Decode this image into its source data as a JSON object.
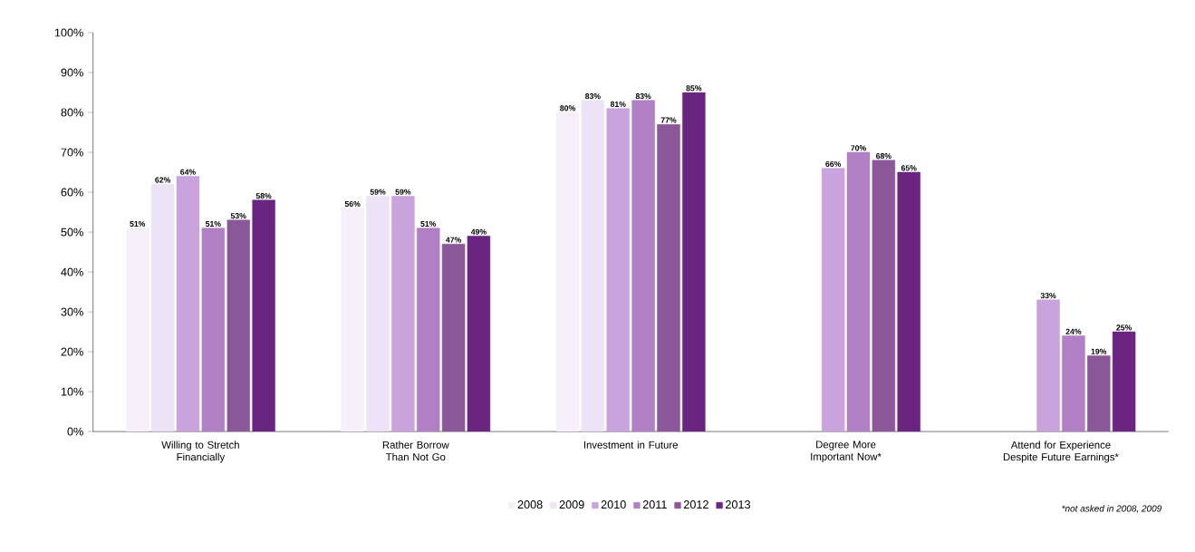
{
  "chart_data": {
    "type": "bar",
    "categories": [
      "Willing to Stretch Financially",
      "Rather Borrow Than Not Go",
      "Investment in Future",
      "Degree More Important Now*",
      "Attend for Experience Despite Future Earnings*"
    ],
    "series": [
      {
        "name": "2008",
        "color": "#f5f0fa",
        "values": [
          51,
          56,
          80,
          null,
          null
        ],
        "value_labels": [
          "51%",
          "56%",
          "80%",
          null,
          null
        ]
      },
      {
        "name": "2009",
        "color": "#ece4f6",
        "values": [
          62,
          59,
          83,
          null,
          null
        ],
        "value_labels": [
          "62%",
          "59%",
          "83%",
          null,
          null
        ]
      },
      {
        "name": "2010",
        "color": "#c9a3dc",
        "values": [
          64,
          59,
          81,
          66,
          33
        ],
        "value_labels": [
          "64%",
          "59%",
          "81%",
          "66%",
          "33%"
        ]
      },
      {
        "name": "2011",
        "color": "#b07fc4",
        "values": [
          51,
          51,
          83,
          70,
          24
        ],
        "value_labels": [
          "51%",
          "51%",
          "83%",
          "70%",
          "24%"
        ]
      },
      {
        "name": "2012",
        "color": "#8a5898",
        "values": [
          53,
          47,
          77,
          68,
          19
        ],
        "value_labels": [
          "53%",
          "47%",
          "77%",
          "68%",
          "19%"
        ]
      },
      {
        "name": "2013",
        "color": "#6a2580",
        "values": [
          58,
          49,
          85,
          65,
          25
        ],
        "value_labels": [
          "58%",
          "49%",
          "85%",
          "65%",
          "25%"
        ]
      }
    ],
    "ylim": [
      0,
      100
    ],
    "yticks": [
      {
        "value": 0,
        "label": "0%"
      },
      {
        "value": 10,
        "label": "10%"
      },
      {
        "value": 20,
        "label": "20%"
      },
      {
        "value": 30,
        "label": "30%"
      },
      {
        "value": 40,
        "label": "40%"
      },
      {
        "value": 50,
        "label": "50%"
      },
      {
        "value": 60,
        "label": "60%"
      },
      {
        "value": 70,
        "label": "70%"
      },
      {
        "value": 80,
        "label": "80%"
      },
      {
        "value": 90,
        "label": "90%"
      },
      {
        "value": 100,
        "label": "100%"
      }
    ],
    "grid": false,
    "legend": "bottom",
    "annotations": [
      "*not asked in 2008, 2009"
    ]
  }
}
